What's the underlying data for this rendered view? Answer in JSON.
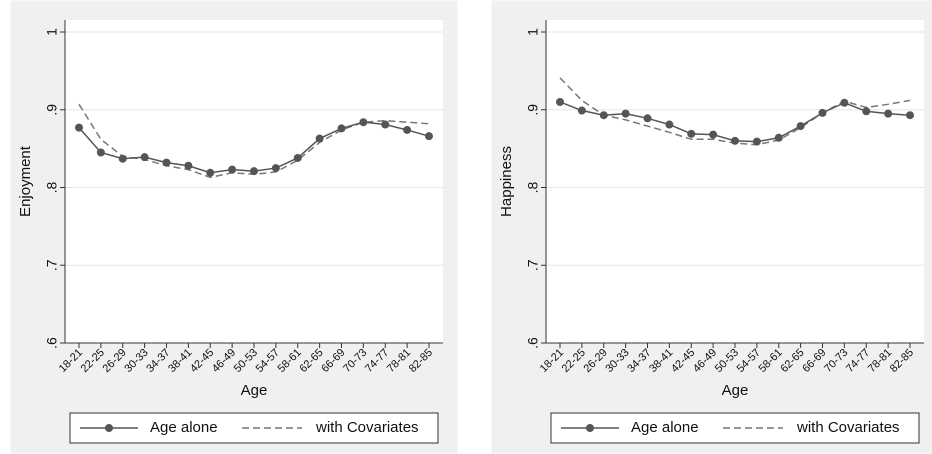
{
  "chart_data": [
    {
      "type": "line",
      "title": "",
      "xlabel": "Age",
      "ylabel": "Enjoyment",
      "ylim": [
        0.6,
        1.0
      ],
      "yticks": [
        ".6",
        ".7",
        ".8",
        ".9",
        "1"
      ],
      "grid": true,
      "legend": "bottom",
      "categories": [
        "18-21",
        "22-25",
        "26-29",
        "30-33",
        "34-37",
        "38-41",
        "42-45",
        "46-49",
        "50-53",
        "54-57",
        "58-61",
        "62-65",
        "66-69",
        "70-73",
        "74-77",
        "78-81",
        "82-85"
      ],
      "series": [
        {
          "name": "Age alone",
          "style": "solid-markers",
          "color": "#555555",
          "values": [
            0.877,
            0.845,
            0.837,
            0.839,
            0.832,
            0.828,
            0.819,
            0.823,
            0.821,
            0.825,
            0.838,
            0.863,
            0.876,
            0.884,
            0.881,
            0.874,
            0.866
          ]
        },
        {
          "name": "with Covariates",
          "style": "dashed",
          "color": "#777777",
          "values": [
            0.907,
            0.862,
            0.84,
            0.836,
            0.828,
            0.823,
            0.813,
            0.819,
            0.817,
            0.82,
            0.835,
            0.858,
            0.874,
            0.884,
            0.886,
            0.884,
            0.882
          ]
        }
      ]
    },
    {
      "type": "line",
      "title": "",
      "xlabel": "Age",
      "ylabel": "Happiness",
      "ylim": [
        0.6,
        1.0
      ],
      "yticks": [
        ".6",
        ".7",
        ".8",
        ".9",
        "1"
      ],
      "grid": true,
      "legend": "bottom",
      "categories": [
        "18-21",
        "22-25",
        "26-29",
        "30-33",
        "34-37",
        "38-41",
        "42-45",
        "46-49",
        "50-53",
        "54-57",
        "58-61",
        "62-65",
        "66-69",
        "70-73",
        "74-77",
        "78-81",
        "82-85"
      ],
      "series": [
        {
          "name": "Age alone",
          "style": "solid-markers",
          "color": "#555555",
          "values": [
            0.91,
            0.899,
            0.893,
            0.895,
            0.889,
            0.881,
            0.869,
            0.868,
            0.86,
            0.859,
            0.864,
            0.879,
            0.896,
            0.909,
            0.898,
            0.895,
            0.893
          ]
        },
        {
          "name": "with Covariates",
          "style": "dashed",
          "color": "#777777",
          "values": [
            0.941,
            0.912,
            0.893,
            0.887,
            0.879,
            0.871,
            0.862,
            0.862,
            0.857,
            0.855,
            0.861,
            0.877,
            0.896,
            0.911,
            0.903,
            0.907,
            0.912
          ]
        }
      ]
    }
  ]
}
